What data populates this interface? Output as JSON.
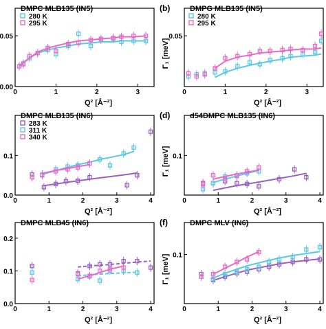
{
  "colors": {
    "purple": "#9b5fc0",
    "cyan": "#5bc8e6",
    "pink": "#e86ac8",
    "axis": "#000000"
  },
  "chart_data": [
    {
      "panel": "a",
      "panel_label": "",
      "title": "DMPC MLB135 (IN5)",
      "type": "scatter",
      "xlabel": "Q² [Å⁻²]",
      "ylabel": "",
      "xlim": [
        0,
        3.4
      ],
      "ylim": [
        0,
        0.065
      ],
      "xticks": [
        0,
        1,
        2,
        3
      ],
      "yticks": [
        0.0,
        0.05
      ],
      "ytick_labels": [
        "0.00",
        "0.05"
      ],
      "legend": "top-left",
      "series": [
        {
          "name": "280 K",
          "color": "cyan",
          "fit": "solid",
          "x": [
            0.1,
            0.2,
            0.35,
            0.55,
            0.8,
            1.0,
            1.3,
            1.55,
            1.85,
            2.1,
            2.4,
            2.6,
            2.9,
            3.2
          ],
          "y": [
            0.02,
            0.023,
            0.028,
            0.033,
            0.036,
            0.032,
            0.04,
            0.052,
            0.04,
            0.046,
            0.047,
            0.044,
            0.045,
            0.045
          ],
          "fit_y": [
            0.021,
            0.024,
            0.028,
            0.033,
            0.036,
            0.038,
            0.04,
            0.042,
            0.043,
            0.044,
            0.044,
            0.045,
            0.045,
            0.045
          ]
        },
        {
          "name": "295 K",
          "color": "pink",
          "fit": "solid",
          "x": [
            0.1,
            0.2,
            0.35,
            0.55,
            0.8,
            1.0,
            1.3,
            1.55,
            1.85,
            2.1,
            2.4,
            2.6,
            2.9,
            3.2
          ],
          "y": [
            0.02,
            0.022,
            0.03,
            0.033,
            0.038,
            0.035,
            0.042,
            0.043,
            0.046,
            0.047,
            0.048,
            0.049,
            0.05,
            0.05
          ],
          "fit_y": [
            0.02,
            0.023,
            0.028,
            0.034,
            0.038,
            0.04,
            0.043,
            0.045,
            0.046,
            0.047,
            0.048,
            0.049,
            0.049,
            0.05
          ]
        }
      ]
    },
    {
      "panel": "b",
      "panel_label": "(b)",
      "title": "DMPG MLB135 (IN5)",
      "type": "scatter",
      "xlabel": "Q² [Å⁻²]",
      "ylabel": "Γ₁ [meV]",
      "xlim": [
        0,
        3.4
      ],
      "ylim": [
        0,
        0.065
      ],
      "xticks": [
        0,
        1,
        2,
        3
      ],
      "yticks": [
        0.05
      ],
      "ytick_labels": [
        "0.05"
      ],
      "legend": "top-left",
      "series": [
        {
          "name": "280 K",
          "color": "cyan",
          "fit": "solid",
          "x": [
            0.1,
            0.3,
            0.5,
            0.75,
            1.0,
            1.3,
            1.6,
            1.85,
            2.1,
            2.4,
            2.6,
            2.9,
            3.2,
            3.35
          ],
          "y": [
            0.01,
            0.012,
            0.013,
            0.014,
            0.015,
            0.02,
            0.024,
            0.022,
            0.026,
            0.028,
            0.03,
            0.032,
            0.034,
            0.045
          ],
          "fit_y": [
            null,
            null,
            null,
            0.009,
            0.014,
            0.018,
            0.021,
            0.023,
            0.025,
            0.027,
            0.029,
            0.03,
            0.031,
            0.032
          ]
        },
        {
          "name": "295 K",
          "color": "pink",
          "fit": "solid",
          "x": [
            0.1,
            0.3,
            0.5,
            0.75,
            1.0,
            1.3,
            1.6,
            1.85,
            2.1,
            2.4,
            2.6,
            2.9,
            3.2,
            3.35
          ],
          "y": [
            0.013,
            0.01,
            0.012,
            0.018,
            0.028,
            0.03,
            0.032,
            0.035,
            0.035,
            0.036,
            0.037,
            0.036,
            0.04,
            0.052
          ],
          "fit_y": [
            null,
            null,
            null,
            0.018,
            0.025,
            0.029,
            0.031,
            0.033,
            0.034,
            0.035,
            0.036,
            0.037,
            0.037,
            0.038
          ]
        }
      ]
    },
    {
      "panel": "c",
      "panel_label": "",
      "title": "DMPC MLB135 (IN6)",
      "type": "scatter",
      "xlabel": "Q² [Å⁻²]",
      "ylabel": "",
      "xlim": [
        0,
        4.1
      ],
      "ylim": [
        0,
        0.17
      ],
      "xticks": [
        0,
        1,
        2,
        3,
        4
      ],
      "yticks": [
        0.0,
        0.1
      ],
      "ytick_labels": [
        "0.0",
        "0.1"
      ],
      "legend": "top-left",
      "series": [
        {
          "name": "283 K",
          "color": "purple",
          "fit": "solid",
          "x": [
            0.5,
            0.85,
            1.2,
            1.5,
            1.85,
            2.2,
            3.3,
            3.6,
            4.0
          ],
          "y": [
            0.052,
            0.02,
            0.028,
            0.035,
            0.036,
            0.045,
            0.025,
            0.05,
            0.16
          ],
          "fit_y": [
            null,
            0.024,
            0.028,
            0.032,
            0.036,
            0.04,
            0.052,
            0.056,
            null
          ]
        },
        {
          "name": "311 K",
          "color": "cyan",
          "fit": "solid",
          "x": [
            0.5,
            0.8,
            1.2,
            1.55,
            1.85,
            2.2,
            2.5,
            2.8,
            3.2,
            3.5
          ],
          "y": [
            0.045,
            0.052,
            0.065,
            0.072,
            0.075,
            0.08,
            0.09,
            0.075,
            0.105,
            0.12
          ],
          "fit_y": [
            null,
            0.052,
            0.062,
            0.07,
            0.077,
            0.083,
            0.09,
            0.095,
            0.102,
            0.11
          ]
        },
        {
          "name": "340 K",
          "color": "pink",
          "fit": "solid",
          "x": [
            0.5,
            0.8,
            1.2,
            1.55,
            1.85,
            2.2
          ],
          "y": [
            0.045,
            0.05,
            0.06,
            0.065,
            0.07,
            0.08
          ],
          "fit_y": [
            null,
            0.055,
            0.062,
            0.067,
            0.072,
            0.077
          ]
        }
      ]
    },
    {
      "panel": "d",
      "panel_label": "(d)",
      "title": "d54DMPC MLB135 (IN6)",
      "type": "scatter",
      "xlabel": "Q² [Å⁻²]",
      "ylabel": "Γ₁ [meV]",
      "xlim": [
        0,
        4.1
      ],
      "ylim": [
        0,
        0.17
      ],
      "xticks": [
        0,
        1,
        2,
        3,
        4
      ],
      "yticks": [
        0.1
      ],
      "ytick_labels": [
        "0.1"
      ],
      "legend": "none",
      "series": [
        {
          "name": "",
          "color": "purple",
          "fit": "solid",
          "x": [
            0.55,
            0.85,
            1.2,
            1.55,
            1.85,
            2.2,
            2.8,
            3.25,
            3.6
          ],
          "y": [
            0.03,
            0.03,
            0.035,
            0.03,
            0.028,
            0.022,
            0.04,
            0.065,
            0.045
          ],
          "fit_y": [
            null,
            0.012,
            0.018,
            0.024,
            0.028,
            0.033,
            0.042,
            0.049,
            0.055
          ]
        },
        {
          "name": "",
          "color": "cyan",
          "fit": "solid",
          "x": [
            0.55,
            0.85,
            1.2,
            1.55,
            1.85,
            2.2
          ],
          "y": [
            0.015,
            0.03,
            0.047,
            0.05,
            0.055,
            0.06
          ],
          "fit_y": [
            null,
            0.032,
            0.04,
            0.048,
            0.055,
            0.062
          ]
        },
        {
          "name": "",
          "color": "pink",
          "fit": "solid",
          "x": [
            0.55,
            0.85,
            1.2,
            1.55,
            1.85,
            2.2
          ],
          "y": [
            0.027,
            0.05,
            0.04,
            0.048,
            0.06,
            0.07
          ],
          "fit_y": [
            null,
            0.04,
            0.047,
            0.053,
            0.058,
            0.063
          ]
        }
      ]
    },
    {
      "panel": "e",
      "panel_label": "",
      "title": "DMPC MLB45 (IN6)",
      "type": "scatter",
      "xlabel": "Q² [Å⁻²]",
      "ylabel": "",
      "xlim": [
        0,
        4.1
      ],
      "ylim": [
        0,
        0.21
      ],
      "xticks": [
        0,
        1,
        2,
        3,
        4
      ],
      "yticks": [
        0.0,
        0.1,
        0.2
      ],
      "ytick_labels": [
        "0.0",
        "0.1",
        "0.2"
      ],
      "legend": "none",
      "series": [
        {
          "name": "",
          "color": "purple",
          "fit": "dashed",
          "x": [
            0.5,
            1.85,
            2.2,
            2.5,
            2.8,
            3.2,
            3.6,
            4.0
          ],
          "y": [
            0.115,
            0.092,
            0.115,
            0.12,
            0.12,
            0.13,
            0.13,
            0.11
          ],
          "fit_y": [
            null,
            0.112,
            0.115,
            0.117,
            0.12,
            0.123,
            0.127,
            0.13
          ]
        },
        {
          "name": "",
          "color": "cyan",
          "fit": "dashed",
          "x": [
            0.5,
            1.85,
            2.2,
            2.5,
            2.8,
            3.2,
            3.6
          ],
          "y": [
            0.095,
            0.075,
            0.083,
            0.07,
            0.1,
            0.1,
            0.095
          ],
          "fit_y": [
            null,
            0.085,
            0.088,
            0.09,
            0.092,
            0.094,
            0.096
          ]
        },
        {
          "name": "",
          "color": "pink",
          "fit": "solid",
          "x": [
            0.5,
            1.85,
            2.2,
            2.5,
            2.8,
            3.2
          ],
          "y": [
            0.072,
            0.09,
            0.085,
            0.1,
            0.105,
            0.11
          ],
          "fit_y": [
            null,
            0.075,
            0.085,
            0.095,
            0.105,
            0.115
          ]
        }
      ]
    },
    {
      "panel": "f",
      "panel_label": "(f)",
      "title": "DMPC MLV (IN6)",
      "type": "scatter",
      "xlabel": "Q² [Å⁻²]",
      "ylabel": "Γ₁ [meV]",
      "xlim": [
        0,
        4.1
      ],
      "ylim": [
        0,
        0.14
      ],
      "xticks": [
        0,
        1,
        2,
        3,
        4
      ],
      "yticks": [
        0.1
      ],
      "ytick_labels": [
        "0.1"
      ],
      "legend": "none",
      "series": [
        {
          "name": "",
          "color": "purple",
          "fit": "solid",
          "x": [
            0.5,
            0.85,
            1.2,
            1.55,
            1.85,
            2.2,
            2.5,
            2.8,
            3.2,
            3.6,
            4.0
          ],
          "y": [
            0.06,
            0.048,
            0.055,
            0.062,
            0.065,
            0.07,
            0.075,
            0.08,
            0.085,
            0.09,
            0.09
          ],
          "fit_y": [
            null,
            0.047,
            0.055,
            0.062,
            0.068,
            0.073,
            0.077,
            0.081,
            0.085,
            0.088,
            0.091
          ]
        },
        {
          "name": "",
          "color": "cyan",
          "fit": "solid",
          "x": [
            0.5,
            0.85,
            1.2,
            1.55,
            1.85,
            2.2,
            2.5,
            2.8,
            3.2,
            3.6,
            4.0
          ],
          "y": [
            0.055,
            0.05,
            0.06,
            0.065,
            0.07,
            0.075,
            0.085,
            0.09,
            0.095,
            0.11,
            0.115
          ],
          "fit_y": [
            null,
            0.052,
            0.062,
            0.07,
            0.077,
            0.083,
            0.088,
            0.093,
            0.098,
            0.102,
            0.106
          ]
        },
        {
          "name": "",
          "color": "pink",
          "fit": "solid",
          "x": [
            0.5,
            0.85,
            1.2,
            1.55,
            1.85,
            2.2
          ],
          "y": [
            0.055,
            0.06,
            0.075,
            0.085,
            0.09,
            0.105
          ],
          "fit_y": [
            null,
            0.06,
            0.072,
            0.084,
            0.095,
            0.106
          ]
        }
      ]
    }
  ]
}
